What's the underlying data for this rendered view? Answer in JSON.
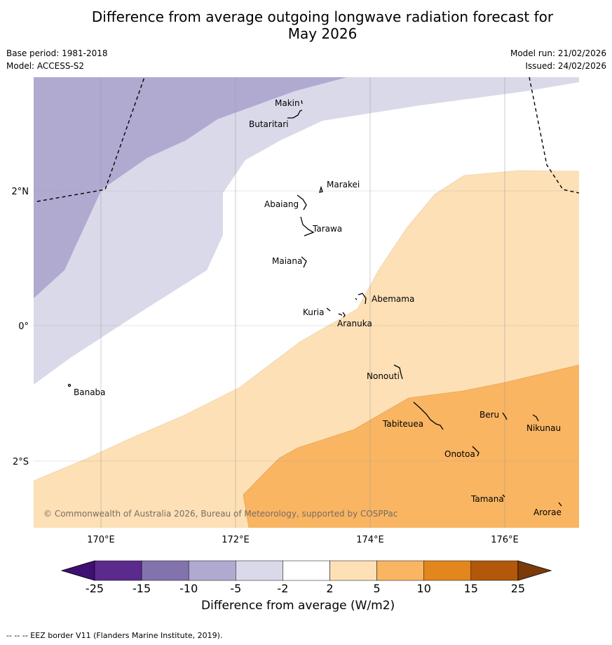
{
  "title_line1": "Difference from average outgoing longwave radiation forecast for",
  "title_line2": "May 2026",
  "base_period": "Base period: 1981-2018",
  "model": "Model: ACCESS-S2",
  "model_run": "Model run: 21/02/2026",
  "issued": "Issued: 24/02/2026",
  "copyright": "© Commonwealth of Australia 2026, Bureau of Meteorology, supported by COSPPac",
  "colorbar_title": "Difference from average (W/m2)",
  "footer": "--  --  -- EEZ border V11 (Flanders Marine Institute, 2019).",
  "lon_labels": [
    "170°E",
    "172°E",
    "174°E",
    "176°E"
  ],
  "lat_labels": [
    "2°N",
    "0°",
    "2°S"
  ],
  "islands": [
    {
      "name": "Makin"
    },
    {
      "name": "Butaritari"
    },
    {
      "name": "Marakei"
    },
    {
      "name": "Abaiang"
    },
    {
      "name": "Tarawa"
    },
    {
      "name": "Maiana"
    },
    {
      "name": "Abemama"
    },
    {
      "name": "Kuria"
    },
    {
      "name": "Aranuka"
    },
    {
      "name": "Banaba"
    },
    {
      "name": "Nonouti"
    },
    {
      "name": "Beru"
    },
    {
      "name": "Tabiteuea"
    },
    {
      "name": "Nikunau"
    },
    {
      "name": "Onotoa"
    },
    {
      "name": "Tamana"
    },
    {
      "name": "Arorae"
    }
  ],
  "colorbar": {
    "ticks": [
      "-25",
      "-15",
      "-10",
      "-5",
      "-2",
      "2",
      "5",
      "10",
      "15",
      "25"
    ],
    "colors": [
      "#3f0f72",
      "#5b2a8c",
      "#8373ad",
      "#b0aad1",
      "#d9d9ea",
      "#ffffff",
      "#fde0b6",
      "#f9b562",
      "#e2861d",
      "#b2580a",
      "#7a3a0a"
    ]
  }
}
